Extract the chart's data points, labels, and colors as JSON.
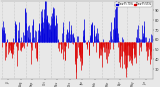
{
  "background_color": "#e8e8e8",
  "bar_color_above": "#0000dd",
  "bar_color_below": "#dd0000",
  "legend_above_label": "Dew Pt 70%",
  "legend_below_label": "Dew Pt 55%",
  "legend_color_above": "#0000dd",
  "legend_color_below": "#dd0000",
  "ylim": [
    20,
    100
  ],
  "num_days": 365,
  "baseline": 58,
  "seed": 99,
  "yticks": [
    30,
    40,
    50,
    60,
    70,
    80,
    90
  ],
  "ytick_labels": [
    "30",
    "40",
    "50",
    "60",
    "70",
    "80",
    "90"
  ],
  "grid_color": "#aaaaaa",
  "spine_color": "#888888",
  "month_starts": [
    0,
    31,
    59,
    90,
    120,
    151,
    181,
    212,
    243,
    273,
    304,
    334
  ],
  "month_labels": [
    "Jul",
    "Aug",
    "Sep",
    "Oct",
    "Nov",
    "Dec",
    "Jan",
    "Feb",
    "Mar",
    "Apr",
    "May",
    "Jun"
  ]
}
